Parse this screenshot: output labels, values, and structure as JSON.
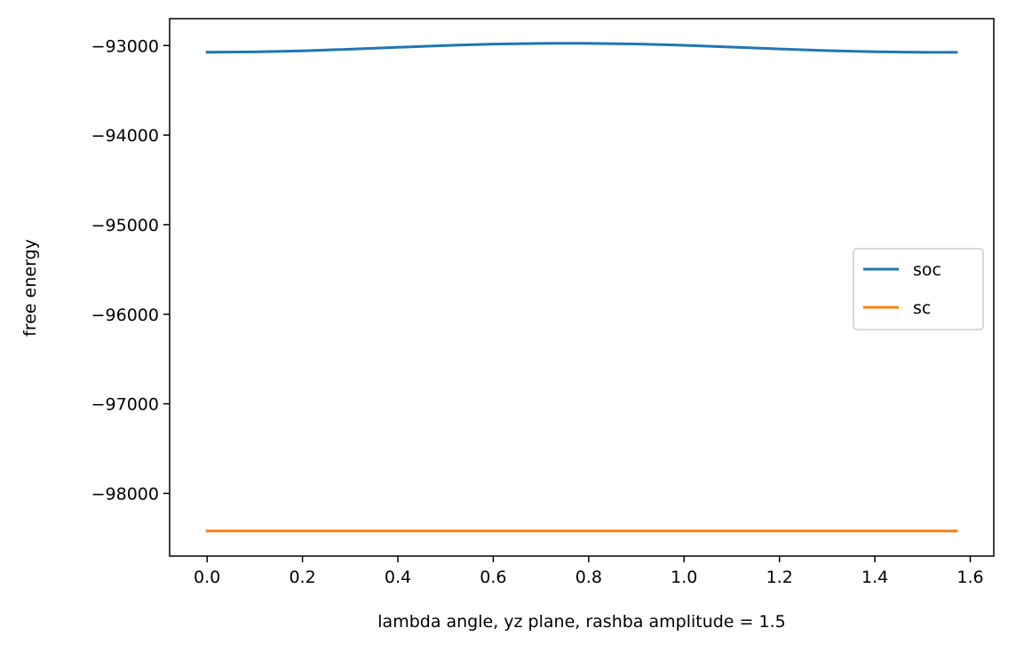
{
  "chart_data": {
    "type": "line",
    "title": "",
    "xlabel": "lambda angle, yz plane, rashba amplitude = 1.5",
    "ylabel": "free energy",
    "xlim": [
      -0.0785,
      1.6493
    ],
    "ylim": [
      -98700,
      -92700
    ],
    "x_ticks": [
      0.0,
      0.2,
      0.4,
      0.6,
      0.8,
      1.0,
      1.2,
      1.4,
      1.6
    ],
    "x_tick_labels": [
      "0.0",
      "0.2",
      "0.4",
      "0.6",
      "0.8",
      "1.0",
      "1.2",
      "1.4",
      "1.6"
    ],
    "y_ticks": [
      -98000,
      -97000,
      -96000,
      -95000,
      -94000,
      -93000
    ],
    "y_tick_labels": [
      "−98000",
      "−97000",
      "−96000",
      "−95000",
      "−94000",
      "−93000"
    ],
    "grid": false,
    "legend_position": "center-right",
    "series": [
      {
        "name": "soc",
        "color": "#1f77b4",
        "x": [
          0.0,
          0.1,
          0.2,
          0.3,
          0.4,
          0.5,
          0.6,
          0.7,
          0.785,
          0.9,
          1.0,
          1.1,
          1.2,
          1.3,
          1.4,
          1.5,
          1.5708
        ],
        "y": [
          -93075,
          -93071,
          -93059,
          -93041,
          -93020,
          -93000,
          -92984,
          -92976,
          -92975,
          -92982,
          -92997,
          -93017,
          -93038,
          -93057,
          -93070,
          -93076,
          -93076
        ]
      },
      {
        "name": "sc",
        "color": "#ff7f0e",
        "x": [
          0.0,
          1.5708
        ],
        "y": [
          -98420,
          -98420
        ]
      }
    ]
  }
}
